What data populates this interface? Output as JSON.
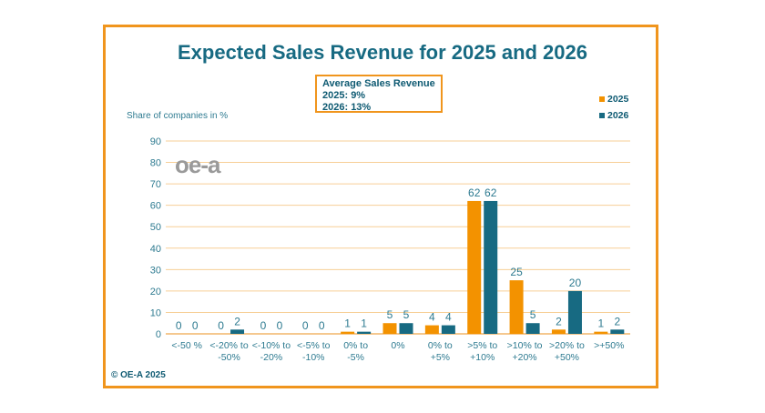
{
  "chart_data": {
    "type": "bar",
    "title": "Expected Sales Revenue for 2025 and 2026",
    "ylabel": "Share of companies in %",
    "xlabel": "",
    "ylim": [
      0,
      90
    ],
    "yticks": [
      0,
      10,
      20,
      30,
      40,
      50,
      60,
      70,
      80,
      90
    ],
    "grid": true,
    "legend_position": "top-right",
    "categories": [
      [
        "<-50 %"
      ],
      [
        "<-20% to",
        "-50%"
      ],
      [
        "<-10% to",
        "-20%"
      ],
      [
        "<-5% to",
        "-10%"
      ],
      [
        "0% to",
        "-5%"
      ],
      [
        "0%"
      ],
      [
        "0% to",
        "+5%"
      ],
      [
        ">5% to",
        "+10%"
      ],
      [
        ">10% to",
        "+20%"
      ],
      [
        ">20% to",
        "+50%"
      ],
      [
        ">+50%"
      ]
    ],
    "series": [
      {
        "name": "2025",
        "color": "#f39200",
        "values": [
          0,
          0,
          0,
          0,
          1,
          5,
          4,
          62,
          25,
          2,
          1
        ]
      },
      {
        "name": "2026",
        "color": "#176a82",
        "values": [
          0,
          2,
          0,
          0,
          1,
          5,
          4,
          62,
          5,
          20,
          2
        ]
      }
    ]
  },
  "annotation": {
    "heading": "Average Sales Revenue",
    "line1": "2025: 9%",
    "line2": "2026: 13%"
  },
  "logo_text": "oe-a",
  "footer": "© OE-A 2025",
  "colors": {
    "accent": "#f39200",
    "primary": "#176a82",
    "grid": "#f7cf96",
    "frame": "#f0951d"
  }
}
